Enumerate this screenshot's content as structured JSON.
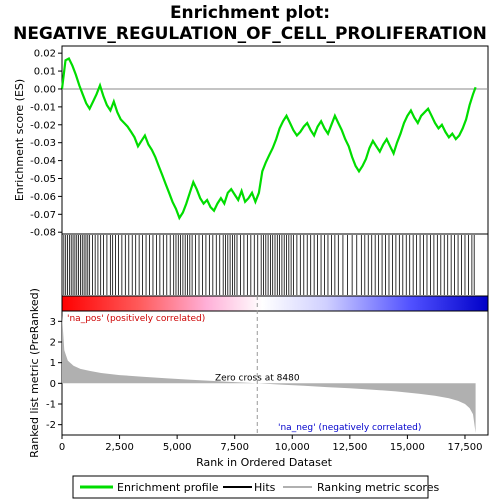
{
  "chart_data": {
    "type": "line",
    "title_line1": "Enrichment plot:",
    "title_line2": "NEGATIVE_REGULATION_OF_CELL_PROLIFERATION",
    "xlabel": "Rank in Ordered Dataset",
    "ylabel_top": "Enrichment score (ES)",
    "ylabel_bottom": "Ranked list metric (PreRanked)",
    "xlim": [
      0,
      18500
    ],
    "es_ylim": [
      -0.081,
      0.024
    ],
    "metric_ylim": [
      -2.5,
      3.5
    ],
    "x_ticks": [
      0,
      2500,
      5000,
      7500,
      10000,
      12500,
      15000,
      17500
    ],
    "x_tick_labels": [
      "0",
      "2,500",
      "5,000",
      "7,500",
      "10,000",
      "12,500",
      "15,000",
      "17,500"
    ],
    "es_ticks": [
      0.02,
      0.01,
      0.0,
      -0.01,
      -0.02,
      -0.03,
      -0.04,
      -0.05,
      -0.06,
      -0.07,
      -0.08
    ],
    "es_tick_labels": [
      "0.02",
      "0.01",
      "0.00",
      "-0.01",
      "-0.02",
      "-0.03",
      "-0.04",
      "-0.05",
      "-0.06",
      "-0.07",
      "-0.08"
    ],
    "metric_ticks": [
      3,
      2,
      1,
      0,
      -1,
      -2
    ],
    "metric_tick_labels": [
      "3",
      "2",
      "1",
      "0",
      "-1",
      "-2"
    ],
    "zero_cross_rank": 8480,
    "zero_cross_label": "Zero cross at 8480",
    "pos_label": "'na_pos' (positively correlated)",
    "neg_label": "'na_neg' (negatively correlated)",
    "series": [
      {
        "name": "Enrichment profile",
        "color": "#00dd00",
        "x": [
          0,
          150,
          300,
          450,
          600,
          750,
          900,
          1050,
          1200,
          1350,
          1500,
          1650,
          1800,
          1950,
          2100,
          2250,
          2400,
          2550,
          2700,
          2850,
          3000,
          3150,
          3300,
          3450,
          3600,
          3750,
          3900,
          4050,
          4200,
          4350,
          4500,
          4650,
          4800,
          4950,
          5100,
          5250,
          5400,
          5550,
          5700,
          5850,
          6000,
          6150,
          6300,
          6450,
          6600,
          6750,
          6900,
          7050,
          7200,
          7350,
          7500,
          7650,
          7800,
          7950,
          8100,
          8250,
          8400,
          8550,
          8700,
          8850,
          9000,
          9150,
          9300,
          9450,
          9600,
          9750,
          9900,
          10050,
          10200,
          10350,
          10500,
          10650,
          10800,
          10950,
          11100,
          11250,
          11400,
          11550,
          11700,
          11850,
          12000,
          12150,
          12300,
          12450,
          12600,
          12750,
          12900,
          13050,
          13200,
          13350,
          13500,
          13650,
          13800,
          13950,
          14100,
          14250,
          14400,
          14550,
          14700,
          14850,
          15000,
          15150,
          15300,
          15450,
          15600,
          15750,
          15900,
          16050,
          16200,
          16350,
          16500,
          16650,
          16800,
          16950,
          17100,
          17250,
          17400,
          17550,
          17700,
          17850,
          17960
        ],
        "values": [
          0.0,
          0.016,
          0.017,
          0.013,
          0.008,
          0.002,
          -0.003,
          -0.008,
          -0.011,
          -0.007,
          -0.003,
          0.002,
          -0.004,
          -0.009,
          -0.012,
          -0.007,
          -0.013,
          -0.017,
          -0.019,
          -0.021,
          -0.024,
          -0.027,
          -0.032,
          -0.029,
          -0.026,
          -0.031,
          -0.034,
          -0.038,
          -0.043,
          -0.048,
          -0.053,
          -0.058,
          -0.063,
          -0.067,
          -0.072,
          -0.069,
          -0.064,
          -0.058,
          -0.052,
          -0.056,
          -0.061,
          -0.064,
          -0.062,
          -0.066,
          -0.068,
          -0.064,
          -0.061,
          -0.064,
          -0.058,
          -0.056,
          -0.059,
          -0.062,
          -0.057,
          -0.063,
          -0.061,
          -0.058,
          -0.063,
          -0.058,
          -0.046,
          -0.041,
          -0.037,
          -0.033,
          -0.028,
          -0.022,
          -0.018,
          -0.015,
          -0.019,
          -0.023,
          -0.026,
          -0.024,
          -0.021,
          -0.019,
          -0.023,
          -0.026,
          -0.021,
          -0.018,
          -0.022,
          -0.025,
          -0.02,
          -0.015,
          -0.019,
          -0.023,
          -0.028,
          -0.032,
          -0.038,
          -0.043,
          -0.046,
          -0.043,
          -0.039,
          -0.033,
          -0.029,
          -0.032,
          -0.035,
          -0.031,
          -0.028,
          -0.032,
          -0.036,
          -0.03,
          -0.025,
          -0.019,
          -0.015,
          -0.012,
          -0.016,
          -0.019,
          -0.015,
          -0.013,
          -0.011,
          -0.015,
          -0.019,
          -0.022,
          -0.02,
          -0.024,
          -0.027,
          -0.025,
          -0.028,
          -0.026,
          -0.022,
          -0.017,
          -0.009,
          -0.003,
          0.001
        ]
      },
      {
        "name": "Hits",
        "color": "#000000",
        "x": [
          80,
          160,
          240,
          320,
          400,
          480,
          560,
          640,
          720,
          800,
          880,
          960,
          1040,
          1120,
          1200,
          1320,
          1440,
          1560,
          1680,
          1800,
          1950,
          2100,
          2200,
          2320,
          2450,
          2600,
          2750,
          2900,
          3050,
          3200,
          3350,
          3500,
          3650,
          3800,
          3950,
          4100,
          4250,
          4400,
          4550,
          4700,
          4850,
          4950,
          5050,
          5150,
          5250,
          5350,
          5450,
          5550,
          5650,
          5800,
          5950,
          6100,
          6250,
          6400,
          6550,
          6700,
          6850,
          7000,
          7100,
          7200,
          7300,
          7400,
          7500,
          7600,
          7750,
          7900,
          8050,
          8200,
          8350,
          8500,
          8650,
          8750,
          8850,
          8950,
          9050,
          9150,
          9250,
          9350,
          9450,
          9550,
          9650,
          9750,
          9850,
          9950,
          10050,
          10200,
          10350,
          10500,
          10650,
          10800,
          10950,
          11100,
          11250,
          11400,
          11550,
          11700,
          11850,
          12000,
          12200,
          12400,
          12600,
          12800,
          13000,
          13150,
          13300,
          13450,
          13600,
          13750,
          13900,
          14050,
          14200,
          14350,
          14500,
          14650,
          14800,
          14950,
          15100,
          15250,
          15400,
          15550,
          15700,
          15850,
          16000,
          16150,
          16300,
          16450,
          16600,
          16750,
          16900,
          17050,
          17200,
          17350,
          17500,
          17650,
          17800,
          17900
        ]
      },
      {
        "name": "Ranking metric scores",
        "color": "#b0b0b0",
        "x": [
          0,
          100,
          250,
          500,
          800,
          1200,
          1700,
          2500,
          3500,
          4500,
          5500,
          6500,
          7500,
          8480,
          9500,
          10500,
          11500,
          12500,
          13500,
          14500,
          15500,
          16200,
          16800,
          17200,
          17500,
          17700,
          17850,
          17960
        ],
        "values": [
          3.3,
          1.6,
          1.1,
          0.85,
          0.7,
          0.6,
          0.5,
          0.4,
          0.32,
          0.25,
          0.18,
          0.12,
          0.06,
          0.0,
          -0.06,
          -0.12,
          -0.18,
          -0.24,
          -0.31,
          -0.39,
          -0.5,
          -0.6,
          -0.72,
          -0.85,
          -1.0,
          -1.2,
          -1.5,
          -2.4
        ]
      }
    ],
    "legend": {
      "placement": "bottom",
      "entries": [
        {
          "label": "Enrichment profile",
          "color": "#00dd00"
        },
        {
          "label": "Hits",
          "color": "#000000"
        },
        {
          "label": "Ranking metric scores",
          "color": "#b0b0b0"
        }
      ]
    },
    "colors": {
      "pos_label": "#cc0000",
      "neg_label": "#0000cc",
      "zero_line": "#999999",
      "gradient": [
        "#ff0000",
        "#ff6666",
        "#ffb0d8",
        "#ffffff",
        "#c8c8ff",
        "#4040ff",
        "#0000cc"
      ]
    }
  }
}
